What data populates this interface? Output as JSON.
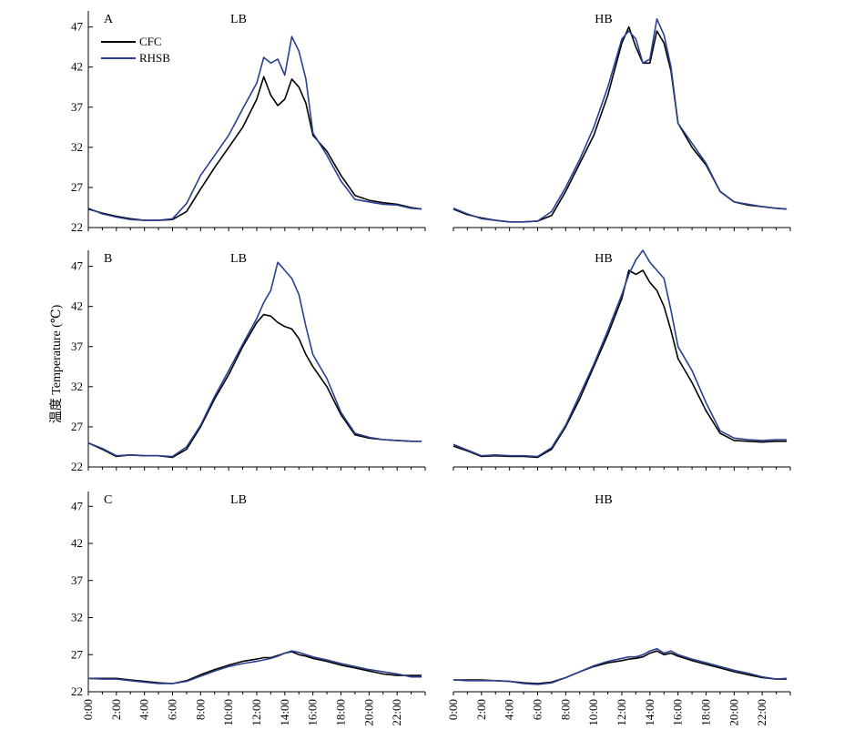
{
  "y_axis_label": "温度 Temperature (℃)",
  "colors": {
    "CFC": "#000000",
    "RHSB": "#2b3f8f"
  },
  "chart_data": {
    "type": "line",
    "x": [
      "0:00",
      "1:00",
      "2:00",
      "3:00",
      "4:00",
      "5:00",
      "6:00",
      "7:00",
      "8:00",
      "9:00",
      "10:00",
      "11:00",
      "12:00",
      "12:30",
      "13:00",
      "13:30",
      "14:00",
      "14:30",
      "15:00",
      "15:30",
      "16:00",
      "17:00",
      "18:00",
      "19:00",
      "20:00",
      "21:00",
      "22:00",
      "23:00",
      "23:45"
    ],
    "x_tick_labels": [
      "0:00",
      "2:00",
      "4:00",
      "6:00",
      "8:00",
      "10:00",
      "12:00",
      "14:00",
      "16:00",
      "18:00",
      "20:00",
      "22:00"
    ],
    "y_ticks": [
      22,
      27,
      32,
      37,
      42,
      47
    ],
    "ylim": [
      22,
      49
    ],
    "legend": {
      "position": "top-left",
      "entries": [
        "CFC",
        "RHSB"
      ]
    },
    "panels": [
      {
        "letter": "A",
        "subplots": [
          {
            "title": "LB",
            "series": [
              {
                "name": "CFC",
                "values": [
                  24.3,
                  23.8,
                  23.4,
                  23.1,
                  22.9,
                  22.9,
                  23.0,
                  24.0,
                  26.8,
                  29.5,
                  32.0,
                  34.5,
                  38.0,
                  40.8,
                  38.5,
                  37.2,
                  38.0,
                  40.5,
                  39.5,
                  37.5,
                  33.5,
                  31.5,
                  28.5,
                  26.0,
                  25.4,
                  25.1,
                  24.9,
                  24.5,
                  24.3
                ]
              },
              {
                "name": "RHSB",
                "values": [
                  24.4,
                  23.7,
                  23.3,
                  23.0,
                  22.9,
                  22.9,
                  23.1,
                  25.0,
                  28.5,
                  31.0,
                  33.5,
                  36.8,
                  40.0,
                  43.2,
                  42.5,
                  43.0,
                  41.0,
                  45.8,
                  44.0,
                  40.5,
                  33.8,
                  31.0,
                  27.8,
                  25.5,
                  25.2,
                  24.9,
                  24.8,
                  24.4,
                  24.3
                ]
              }
            ]
          },
          {
            "title": "HB",
            "series": [
              {
                "name": "CFC",
                "values": [
                  24.3,
                  23.6,
                  23.2,
                  22.9,
                  22.7,
                  22.7,
                  22.8,
                  23.5,
                  26.5,
                  30.0,
                  33.5,
                  38.5,
                  45.0,
                  47.0,
                  44.5,
                  42.5,
                  42.5,
                  46.5,
                  45.0,
                  41.5,
                  35.0,
                  32.0,
                  29.8,
                  26.5,
                  25.2,
                  24.8,
                  24.6,
                  24.4,
                  24.3
                ]
              },
              {
                "name": "RHSB",
                "values": [
                  24.4,
                  23.7,
                  23.1,
                  22.9,
                  22.7,
                  22.7,
                  22.8,
                  24.0,
                  27.0,
                  30.5,
                  34.5,
                  39.5,
                  45.5,
                  46.5,
                  45.5,
                  42.5,
                  43.0,
                  48.0,
                  46.0,
                  42.0,
                  35.0,
                  32.5,
                  30.0,
                  26.5,
                  25.2,
                  24.9,
                  24.6,
                  24.4,
                  24.3
                ]
              }
            ]
          }
        ]
      },
      {
        "letter": "B",
        "subplots": [
          {
            "title": "LB",
            "series": [
              {
                "name": "CFC",
                "values": [
                  25.0,
                  24.2,
                  23.3,
                  23.5,
                  23.4,
                  23.4,
                  23.2,
                  24.2,
                  27.0,
                  30.5,
                  33.5,
                  37.0,
                  40.0,
                  41.0,
                  40.8,
                  40.0,
                  39.5,
                  39.2,
                  38.0,
                  36.0,
                  34.5,
                  32.0,
                  28.5,
                  26.0,
                  25.6,
                  25.4,
                  25.3,
                  25.2,
                  25.2
                ]
              },
              {
                "name": "RHSB",
                "values": [
                  25.0,
                  24.3,
                  23.4,
                  23.5,
                  23.4,
                  23.4,
                  23.3,
                  24.5,
                  27.2,
                  30.8,
                  34.0,
                  37.3,
                  40.5,
                  42.5,
                  44.0,
                  47.5,
                  46.5,
                  45.5,
                  43.5,
                  39.5,
                  36.0,
                  33.0,
                  28.8,
                  26.2,
                  25.7,
                  25.4,
                  25.3,
                  25.2,
                  25.2
                ]
              }
            ]
          },
          {
            "title": "HB",
            "series": [
              {
                "name": "CFC",
                "values": [
                  24.6,
                  24.0,
                  23.3,
                  23.4,
                  23.3,
                  23.3,
                  23.2,
                  24.2,
                  27.0,
                  30.5,
                  34.5,
                  38.5,
                  43.0,
                  46.5,
                  46.0,
                  46.5,
                  45.0,
                  44.0,
                  42.0,
                  39.0,
                  35.5,
                  32.5,
                  29.0,
                  26.2,
                  25.3,
                  25.2,
                  25.1,
                  25.2,
                  25.2
                ]
              },
              {
                "name": "RHSB",
                "values": [
                  24.8,
                  24.1,
                  23.4,
                  23.5,
                  23.4,
                  23.4,
                  23.3,
                  24.4,
                  27.2,
                  31.0,
                  34.8,
                  39.0,
                  43.5,
                  46.0,
                  47.8,
                  49.0,
                  47.5,
                  46.5,
                  45.5,
                  41.5,
                  37.0,
                  34.0,
                  30.0,
                  26.5,
                  25.6,
                  25.4,
                  25.3,
                  25.4,
                  25.4
                ]
              }
            ]
          }
        ]
      },
      {
        "letter": "C",
        "subplots": [
          {
            "title": "LB",
            "series": [
              {
                "name": "CFC",
                "values": [
                  23.8,
                  23.8,
                  23.8,
                  23.6,
                  23.4,
                  23.2,
                  23.1,
                  23.5,
                  24.3,
                  25.0,
                  25.6,
                  26.1,
                  26.4,
                  26.6,
                  26.6,
                  26.9,
                  27.2,
                  27.4,
                  27.0,
                  26.8,
                  26.5,
                  26.1,
                  25.6,
                  25.2,
                  24.8,
                  24.4,
                  24.2,
                  24.2,
                  24.2
                ]
              },
              {
                "name": "RHSB",
                "values": [
                  23.8,
                  23.7,
                  23.7,
                  23.5,
                  23.3,
                  23.1,
                  23.1,
                  23.4,
                  24.1,
                  24.8,
                  25.4,
                  25.8,
                  26.1,
                  26.3,
                  26.5,
                  26.8,
                  27.2,
                  27.5,
                  27.3,
                  27.0,
                  26.7,
                  26.3,
                  25.8,
                  25.4,
                  25.0,
                  24.7,
                  24.4,
                  24.0,
                  24.0
                ]
              }
            ]
          },
          {
            "title": "HB",
            "series": [
              {
                "name": "CFC",
                "values": [
                  23.6,
                  23.6,
                  23.6,
                  23.5,
                  23.4,
                  23.2,
                  23.1,
                  23.3,
                  23.9,
                  24.7,
                  25.4,
                  25.9,
                  26.2,
                  26.4,
                  26.5,
                  26.7,
                  27.2,
                  27.5,
                  27.0,
                  27.2,
                  26.8,
                  26.2,
                  25.7,
                  25.2,
                  24.7,
                  24.3,
                  23.9,
                  23.7,
                  23.7
                ]
              },
              {
                "name": "RHSB",
                "values": [
                  23.6,
                  23.5,
                  23.5,
                  23.5,
                  23.4,
                  23.1,
                  23.0,
                  23.2,
                  23.9,
                  24.7,
                  25.5,
                  26.1,
                  26.5,
                  26.7,
                  26.7,
                  27.0,
                  27.5,
                  27.8,
                  27.2,
                  27.5,
                  27.0,
                  26.4,
                  25.9,
                  25.4,
                  24.9,
                  24.5,
                  24.0,
                  23.7,
                  23.8
                ]
              }
            ]
          }
        ]
      }
    ]
  }
}
